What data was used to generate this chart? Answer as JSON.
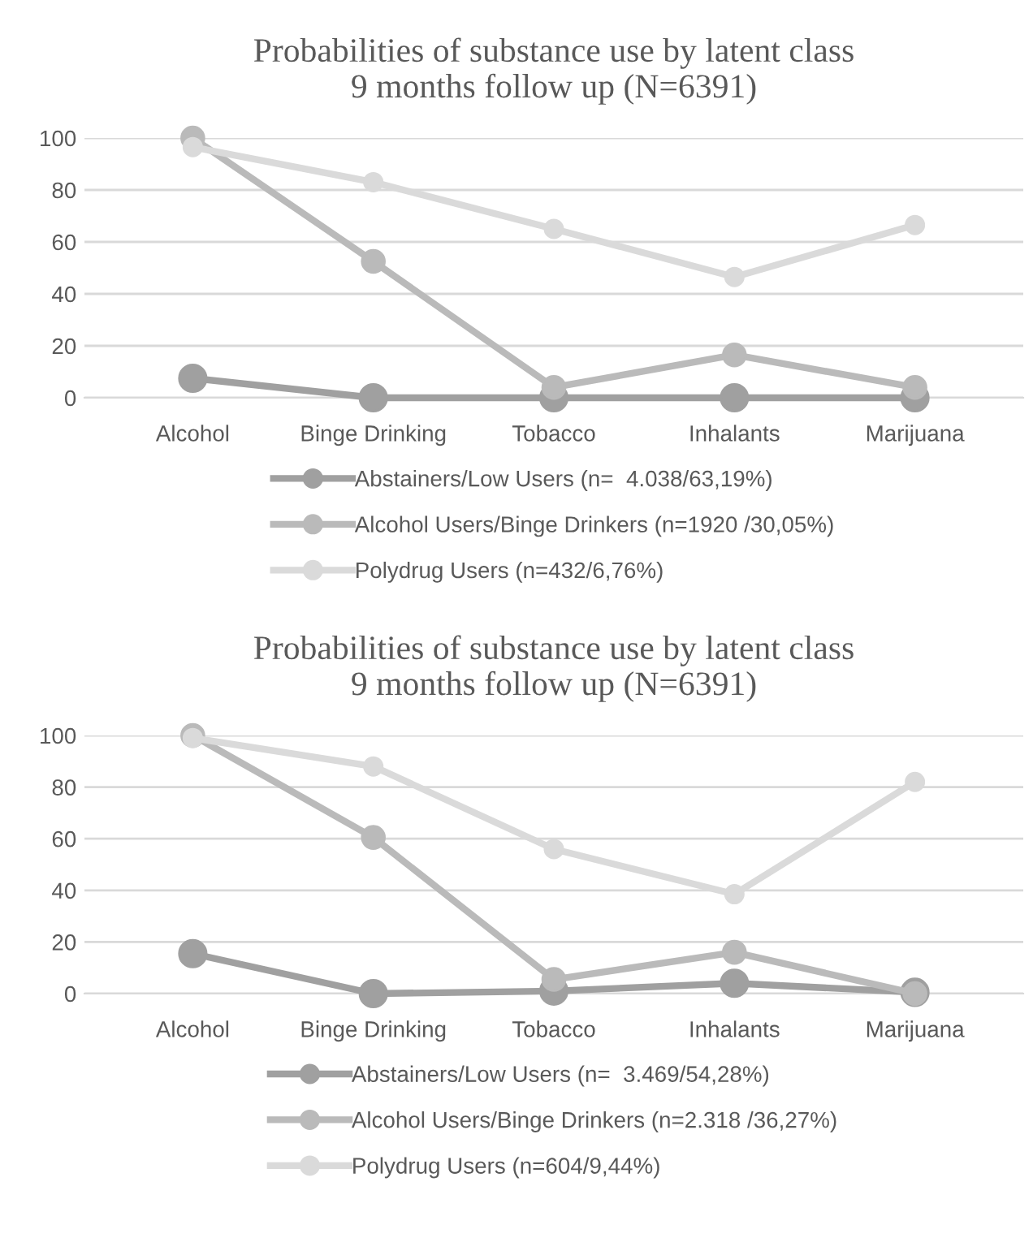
{
  "chart_data": [
    {
      "type": "line",
      "title": "Probabilities of substance use by latent class\n9 months follow up (N=6391)",
      "categories": [
        "Alcohol",
        "Binge Drinking",
        "Tobacco",
        "Inhalants",
        "Marijuana"
      ],
      "series": [
        {
          "name": "Abstainers/Low Users (n=  4.038/63,19%)",
          "color": "#a0a0a0",
          "values": [
            7.5,
            0,
            0,
            0,
            0
          ]
        },
        {
          "name": "Alcohol Users/Binge Drinkers (n=1920 /30,05%)",
          "color": "#bababa",
          "values": [
            100,
            52.5,
            4,
            16.5,
            4
          ]
        },
        {
          "name": "Polydrug Users (n=432/6,76%)",
          "color": "#dadada",
          "values": [
            96.5,
            83,
            65,
            46.5,
            66.5
          ]
        }
      ],
      "ylim": [
        0,
        100
      ],
      "yticks": [
        0,
        20,
        40,
        60,
        80,
        100
      ],
      "grid": "y",
      "legend": "bottom",
      "marker": "circle",
      "line_style": "solid"
    },
    {
      "type": "line",
      "title": "Probabilities of substance use by latent class\n9 months follow up (N=6391)",
      "categories": [
        "Alcohol",
        "Binge Drinking",
        "Tobacco",
        "Inhalants",
        "Marijuana"
      ],
      "series": [
        {
          "name": "Abstainers/Low Users (n=  3.469/54,28%)",
          "color": "#a0a0a0",
          "values": [
            15.5,
            0,
            1,
            4,
            0.5
          ]
        },
        {
          "name": "Alcohol Users/Binge Drinkers (n=2.318 /36,27%)",
          "color": "#bababa",
          "values": [
            100,
            60.5,
            5.5,
            16,
            0
          ]
        },
        {
          "name": "Polydrug Users (n=604/9,44%)",
          "color": "#dadada",
          "values": [
            99,
            88,
            56,
            38.5,
            82
          ]
        }
      ],
      "ylim": [
        0,
        100
      ],
      "yticks": [
        0,
        20,
        40,
        60,
        80,
        100
      ],
      "grid": "y",
      "legend": "bottom",
      "marker": "circle",
      "line_style": "solid"
    }
  ]
}
